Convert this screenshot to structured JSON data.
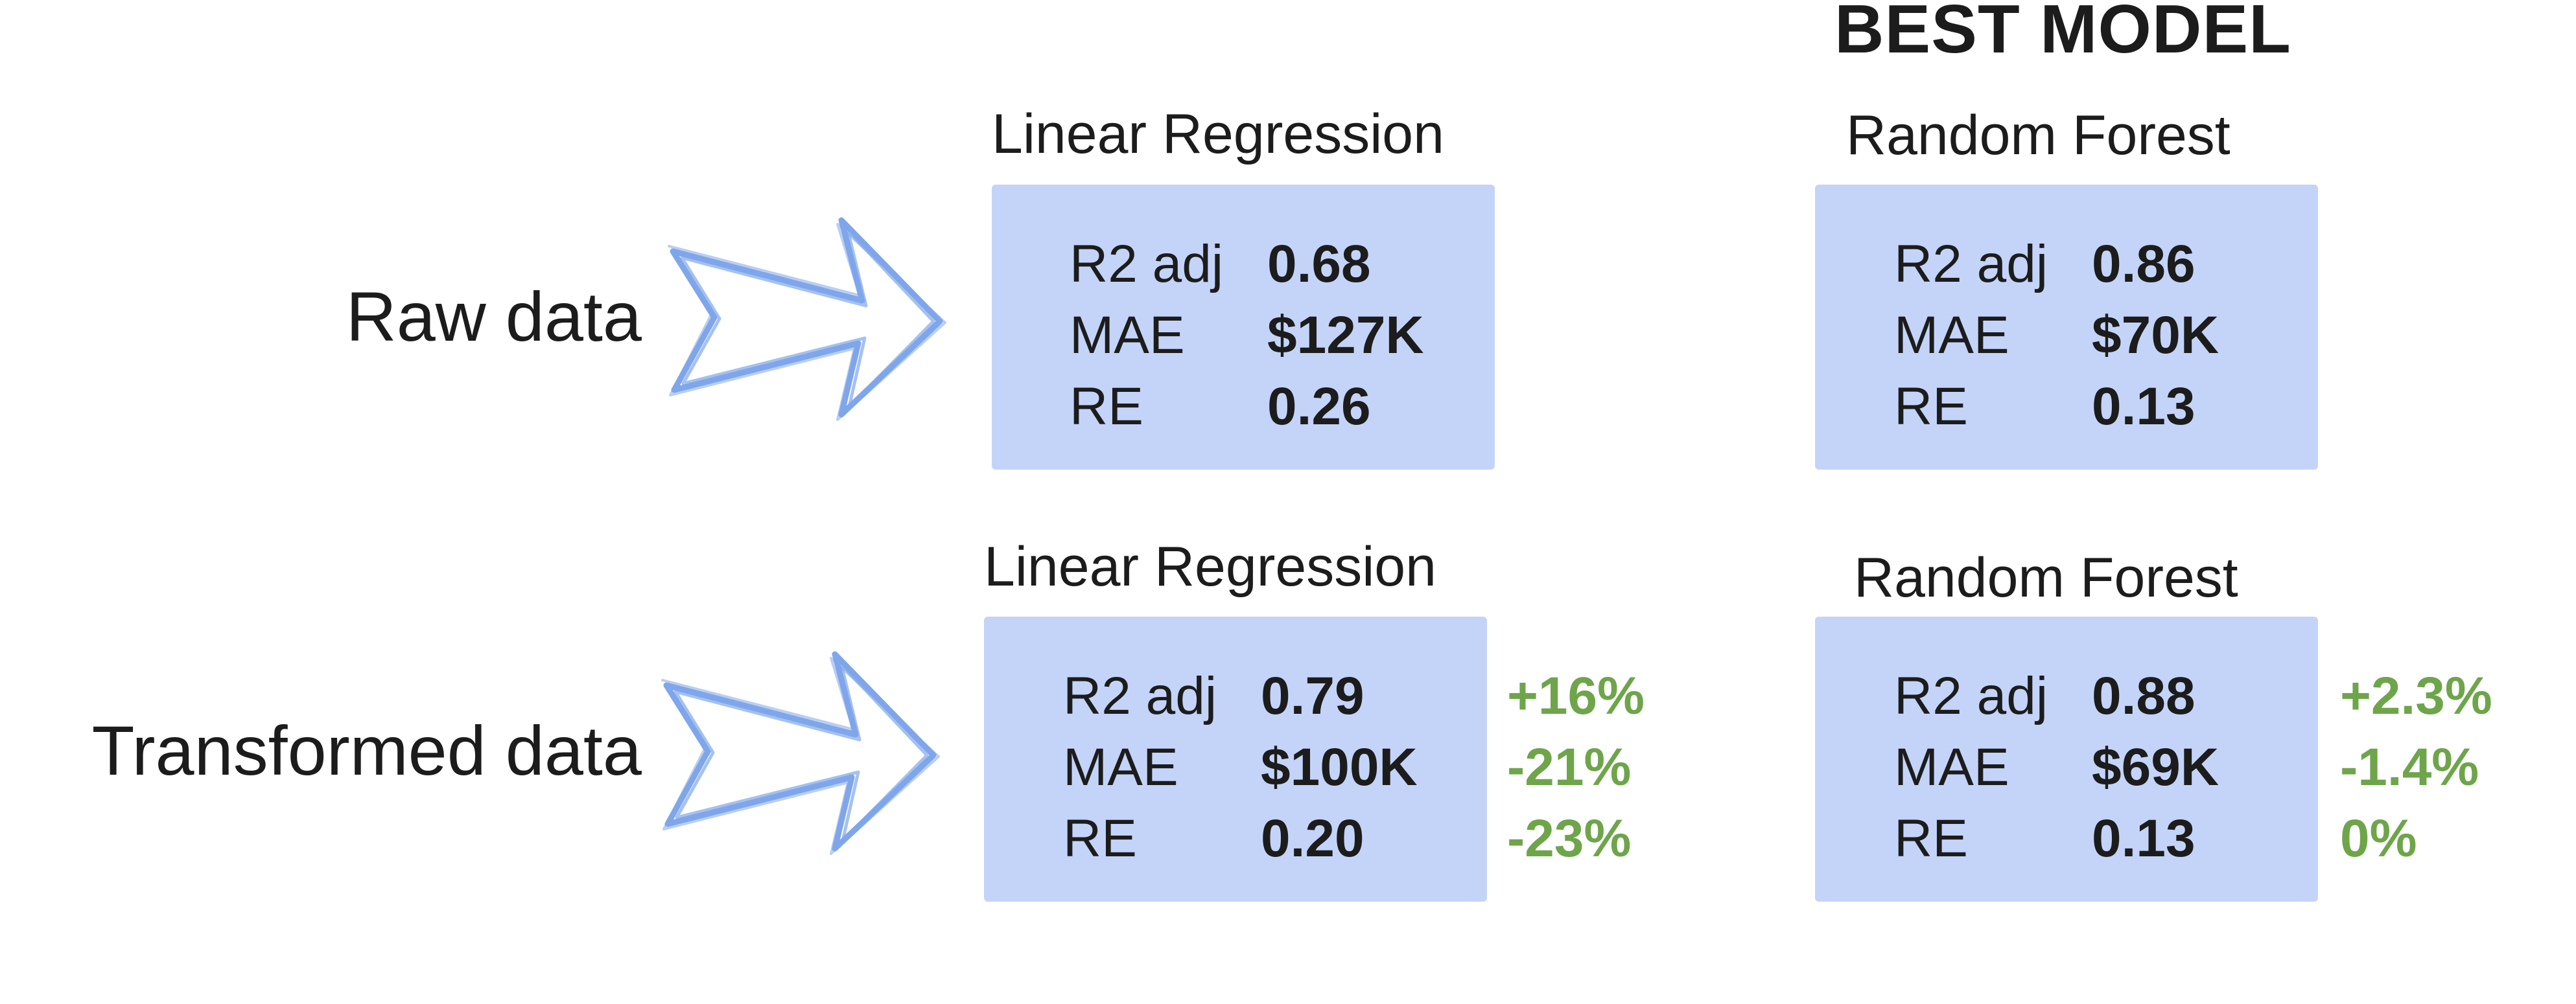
{
  "header": {
    "best_label": "BEST MODEL"
  },
  "colors": {
    "panel": "#c4d4f9",
    "arrow": "#7fa6ea",
    "positive": "#6ea54a",
    "text": "#1c1c1c"
  },
  "icons": {
    "row_arrow": "hand-drawn-right-arrow-icon"
  },
  "rows": [
    {
      "label": "Raw data",
      "models": [
        {
          "title": "Linear Regression",
          "metrics": [
            {
              "name": "R2 adj",
              "value": "0.68"
            },
            {
              "name": "MAE",
              "value": "$127K"
            },
            {
              "name": "RE",
              "value": "0.26"
            }
          ]
        },
        {
          "title": "Random Forest",
          "metrics": [
            {
              "name": "R2 adj",
              "value": "0.86"
            },
            {
              "name": "MAE",
              "value": "$70K"
            },
            {
              "name": "RE",
              "value": "0.13"
            }
          ]
        }
      ]
    },
    {
      "label": "Transformed data",
      "models": [
        {
          "title": "Linear Regression",
          "metrics": [
            {
              "name": "R2 adj",
              "value": "0.79",
              "change": "+16%"
            },
            {
              "name": "MAE",
              "value": "$100K",
              "change": "-21%"
            },
            {
              "name": "RE",
              "value": "0.20",
              "change": "-23%"
            }
          ]
        },
        {
          "title": "Random Forest",
          "metrics": [
            {
              "name": "R2 adj",
              "value": "0.88",
              "change": "+2.3%"
            },
            {
              "name": "MAE",
              "value": "$69K",
              "change": "-1.4%"
            },
            {
              "name": "RE",
              "value": "0.13",
              "change": "0%"
            }
          ]
        }
      ]
    }
  ]
}
